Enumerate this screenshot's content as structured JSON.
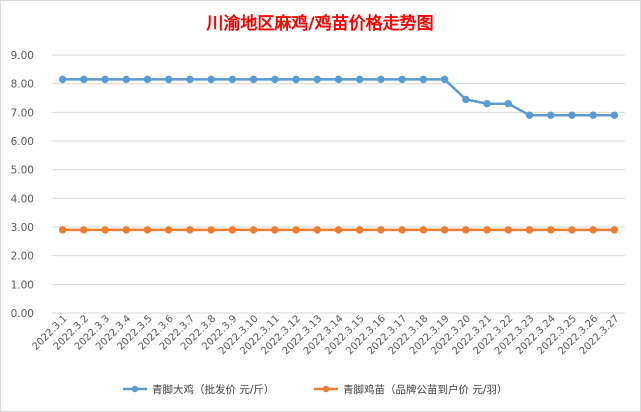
{
  "chart_data": {
    "type": "line",
    "title": "川渝地区麻鸡/鸡苗价格走势图",
    "xlabel": "",
    "ylabel": "",
    "ylim": [
      0,
      9
    ],
    "yticks": [
      "0.00",
      "1.00",
      "2.00",
      "3.00",
      "4.00",
      "5.00",
      "6.00",
      "7.00",
      "8.00",
      "9.00"
    ],
    "grid": true,
    "legend_position": "bottom",
    "categories": [
      "2022.3.1",
      "2022.3.2",
      "2022.3.3",
      "2022.3.4",
      "2022.3.5",
      "2022.3.6",
      "2022.3.7",
      "2022.3.8",
      "2022.3.9",
      "2022.3.10",
      "2022.3.11",
      "2022.3.12",
      "2022.3.13",
      "2022.3.14",
      "2022.3.15",
      "2022.3.16",
      "2022.3.17",
      "2022.3.18",
      "2022.3.19",
      "2022.3.20",
      "2022.3.21",
      "2022.3.22",
      "2022.3.23",
      "2022.3.24",
      "2022.3.25",
      "2022.3.26",
      "2022.3.27"
    ],
    "series": [
      {
        "name": "青脚大鸡（批发价 元/斤）",
        "color": "#5b9bd5",
        "values": [
          8.15,
          8.15,
          8.15,
          8.15,
          8.15,
          8.15,
          8.15,
          8.15,
          8.15,
          8.15,
          8.15,
          8.15,
          8.15,
          8.15,
          8.15,
          8.15,
          8.15,
          8.15,
          8.15,
          7.45,
          7.3,
          7.3,
          6.9,
          6.9,
          6.9,
          6.9,
          6.9
        ]
      },
      {
        "name": "青脚鸡苗（品牌公苗到户价 元/羽）",
        "color": "#ed7d31",
        "values": [
          2.9,
          2.9,
          2.9,
          2.9,
          2.9,
          2.9,
          2.9,
          2.9,
          2.9,
          2.9,
          2.9,
          2.9,
          2.9,
          2.9,
          2.9,
          2.9,
          2.9,
          2.9,
          2.9,
          2.9,
          2.9,
          2.9,
          2.9,
          2.9,
          2.9,
          2.9,
          2.9
        ]
      }
    ]
  }
}
